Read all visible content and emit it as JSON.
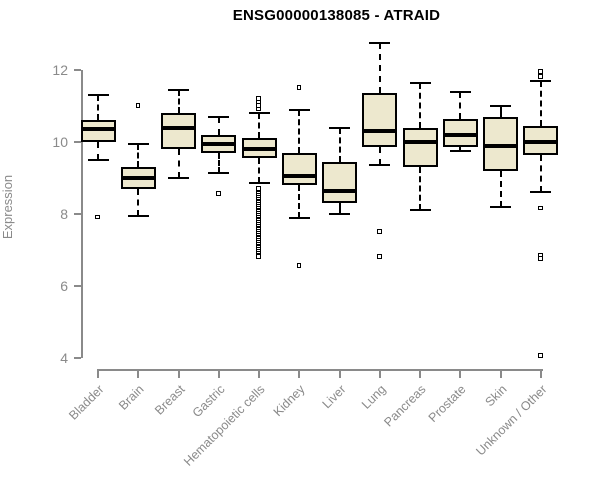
{
  "chart_data": {
    "type": "boxplot",
    "title": "ENSG00000138085 - ATRAID",
    "xlabel": "",
    "ylabel": "Expression",
    "ylim": [
      4,
      12
    ],
    "yticks": [
      4,
      6,
      8,
      10,
      12
    ],
    "grid": false,
    "legend": "none",
    "box_fill_color": "#EDE8CE",
    "box_line_color": "#000000",
    "axis_color": "#8A8A8A",
    "title_color": "#000000",
    "categories": [
      "Bladder",
      "Brain",
      "Breast",
      "Gastric",
      "Hematopoietic cells",
      "Kidney",
      "Liver",
      "Lung",
      "Pancreas",
      "Prostate",
      "Skin",
      "Unknown / Other"
    ],
    "series": [
      {
        "name": "Bladder",
        "whisker_low": 9.5,
        "q1": 10.0,
        "median": 10.35,
        "q3": 10.6,
        "whisker_high": 11.3,
        "outliers": [
          7.9
        ]
      },
      {
        "name": "Brain",
        "whisker_low": 7.95,
        "q1": 8.7,
        "median": 9.0,
        "q3": 9.3,
        "whisker_high": 9.95,
        "outliers": [
          11.0
        ]
      },
      {
        "name": "Breast",
        "whisker_low": 9.0,
        "q1": 9.8,
        "median": 10.4,
        "q3": 10.8,
        "whisker_high": 11.45,
        "outliers": []
      },
      {
        "name": "Gastric",
        "whisker_low": 9.15,
        "q1": 9.7,
        "median": 9.95,
        "q3": 10.2,
        "whisker_high": 10.7,
        "outliers": [
          8.55
        ]
      },
      {
        "name": "Hematopoietic cells",
        "whisker_low": 8.85,
        "q1": 9.55,
        "median": 9.8,
        "q3": 10.1,
        "whisker_high": 10.8,
        "outliers": [
          11.2,
          11.1,
          11.0,
          10.9,
          8.7,
          8.6,
          8.55,
          8.5,
          8.45,
          8.4,
          8.35,
          8.3,
          8.25,
          8.2,
          8.15,
          8.1,
          8.05,
          8.0,
          7.95,
          7.9,
          7.85,
          7.8,
          7.75,
          7.7,
          7.65,
          7.6,
          7.55,
          7.5,
          7.45,
          7.4,
          7.35,
          7.3,
          7.25,
          7.2,
          7.15,
          7.1,
          7.05,
          7.0,
          6.95,
          6.9,
          6.85,
          6.8
        ]
      },
      {
        "name": "Kidney",
        "whisker_low": 7.9,
        "q1": 8.8,
        "median": 9.05,
        "q3": 9.7,
        "whisker_high": 10.9,
        "outliers": [
          11.5,
          6.55
        ]
      },
      {
        "name": "Liver",
        "whisker_low": 8.0,
        "q1": 8.3,
        "median": 8.65,
        "q3": 9.45,
        "whisker_high": 10.4,
        "outliers": []
      },
      {
        "name": "Lung",
        "whisker_low": 9.35,
        "q1": 9.85,
        "median": 10.3,
        "q3": 11.35,
        "whisker_high": 12.75,
        "outliers": [
          7.5,
          6.8
        ]
      },
      {
        "name": "Pancreas",
        "whisker_low": 8.1,
        "q1": 9.3,
        "median": 10.0,
        "q3": 10.4,
        "whisker_high": 11.65,
        "outliers": []
      },
      {
        "name": "Prostate",
        "whisker_low": 9.75,
        "q1": 9.85,
        "median": 10.2,
        "q3": 10.65,
        "whisker_high": 11.4,
        "outliers": []
      },
      {
        "name": "Skin",
        "whisker_low": 8.2,
        "q1": 9.2,
        "median": 9.9,
        "q3": 10.7,
        "whisker_high": 11.0,
        "outliers": []
      },
      {
        "name": "Unknown / Other",
        "whisker_low": 8.6,
        "q1": 9.65,
        "median": 10.0,
        "q3": 10.45,
        "whisker_high": 11.7,
        "outliers": [
          11.95,
          11.8,
          8.15,
          6.85,
          6.75,
          4.05
        ]
      }
    ]
  }
}
